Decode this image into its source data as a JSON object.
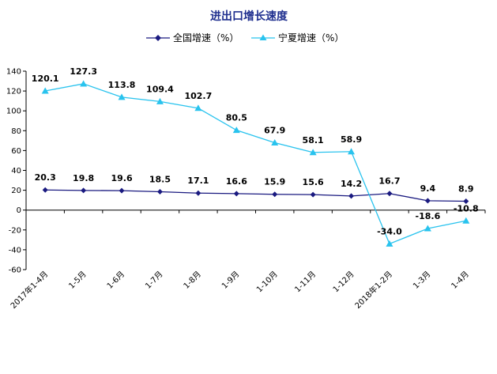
{
  "chart_data": {
    "type": "line",
    "title": "进出口增长速度",
    "categories": [
      "2017年1-4月",
      "1-5月",
      "1-6月",
      "1-7月",
      "1-8月",
      "1-9月",
      "1-10月",
      "1-11月",
      "1-12月",
      "2018年1-2月",
      "1-3月",
      "1-4月"
    ],
    "series": [
      {
        "name": "全国增速（%）",
        "color": "#1a1a80",
        "marker": "diamond",
        "values": [
          20.3,
          19.8,
          19.6,
          18.5,
          17.1,
          16.6,
          15.9,
          15.6,
          14.2,
          16.7,
          9.4,
          8.9
        ],
        "labels": [
          "20.3",
          "19.8",
          "19.6",
          "18.5",
          "17.1",
          "16.6",
          "15.9",
          "15.6",
          "14.2",
          "16.7",
          "9.4",
          "8.9"
        ]
      },
      {
        "name": "宁夏增速（%）",
        "color": "#29c3ee",
        "marker": "triangle",
        "values": [
          120.1,
          127.3,
          113.8,
          109.4,
          102.7,
          80.5,
          67.9,
          58.1,
          58.9,
          -34.0,
          -18.6,
          -10.8
        ],
        "labels": [
          "120.1",
          "127.3",
          "113.8",
          "109.4",
          "102.7",
          "80.5",
          "67.9",
          "58.1",
          "58.9",
          "-34.0",
          "-18.6",
          "-10.8"
        ]
      }
    ],
    "ylim": [
      -60,
      140
    ],
    "yticks": [
      "-60",
      "-40",
      "-20",
      "0",
      "20",
      "40",
      "60",
      "80",
      "100",
      "120",
      "140"
    ],
    "xlabel": "",
    "ylabel": "",
    "grid": false,
    "legend_position": "top"
  }
}
